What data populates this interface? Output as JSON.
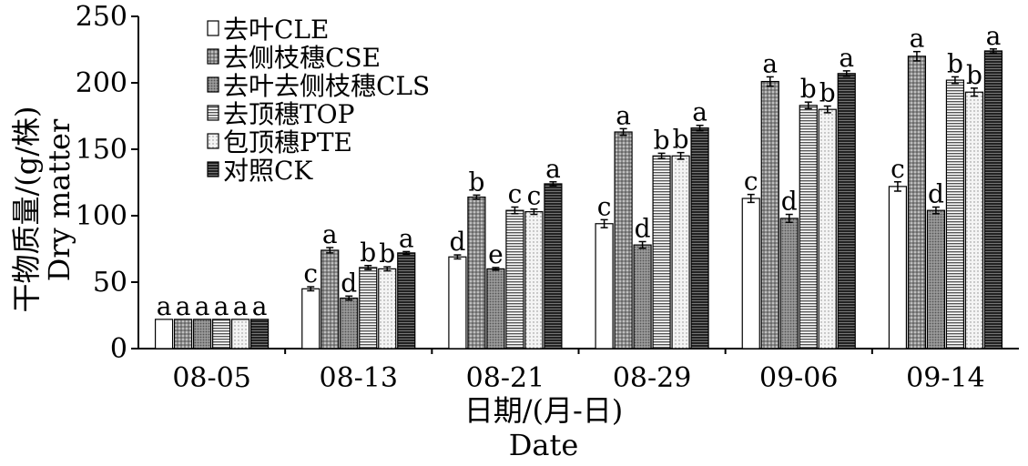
{
  "chart_data": {
    "type": "bar",
    "categories": [
      "08-05",
      "08-13",
      "08-21",
      "08-29",
      "09-06",
      "09-14"
    ],
    "xlabel": "日期/(月-日)",
    "xlabel_en": "Date",
    "ylabel": "干物质量/(g/株)",
    "ylabel_en": "Dry matter",
    "ylim": [
      0,
      250
    ],
    "yticks": [
      0,
      50,
      100,
      150,
      200,
      250
    ],
    "grid": false,
    "legend_position": "top-left",
    "series": [
      {
        "name": "去叶CLE",
        "pattern": "white",
        "values": [
          22,
          45,
          69,
          94,
          113,
          122
        ],
        "errors": [
          0,
          1.5,
          1.5,
          3,
          3,
          3.5
        ],
        "labels": [
          "a",
          "c",
          "d",
          "c",
          "c",
          "c"
        ]
      },
      {
        "name": "去侧枝穗CSE",
        "pattern": "dots-dense",
        "values": [
          22,
          74,
          114,
          163,
          201,
          220
        ],
        "errors": [
          0,
          2,
          1.5,
          2.5,
          3.5,
          3.5
        ],
        "labels": [
          "a",
          "a",
          "b",
          "a",
          "a",
          "a"
        ]
      },
      {
        "name": "去叶去侧枝穗CLS",
        "pattern": "dots-dark",
        "values": [
          22,
          38,
          60,
          78,
          98,
          104
        ],
        "errors": [
          0,
          1.5,
          1,
          2.5,
          3,
          2.5
        ],
        "labels": [
          "a",
          "d",
          "e",
          "d",
          "d",
          "d"
        ]
      },
      {
        "name": "去顶穗TOP",
        "pattern": "h-lines",
        "values": [
          22,
          61,
          104,
          145,
          183,
          202
        ],
        "errors": [
          0,
          1.5,
          2.5,
          2,
          2.5,
          2.5
        ],
        "labels": [
          "a",
          "b",
          "c",
          "b",
          "b",
          "b"
        ]
      },
      {
        "name": "包顶穗PTE",
        "pattern": "dots-light",
        "values": [
          22,
          60,
          103,
          145,
          180,
          193
        ],
        "errors": [
          0,
          1.5,
          2,
          2.5,
          2.5,
          3
        ],
        "labels": [
          "a",
          "b",
          "c",
          "b",
          "b",
          "b"
        ]
      },
      {
        "name": "对照CK",
        "pattern": "dark-lines",
        "values": [
          22,
          72,
          124,
          166,
          207,
          224
        ],
        "errors": [
          0,
          1,
          1.5,
          2,
          2,
          1.5
        ],
        "labels": [
          "a",
          "a",
          "a",
          "a",
          "a",
          "a"
        ]
      }
    ]
  }
}
